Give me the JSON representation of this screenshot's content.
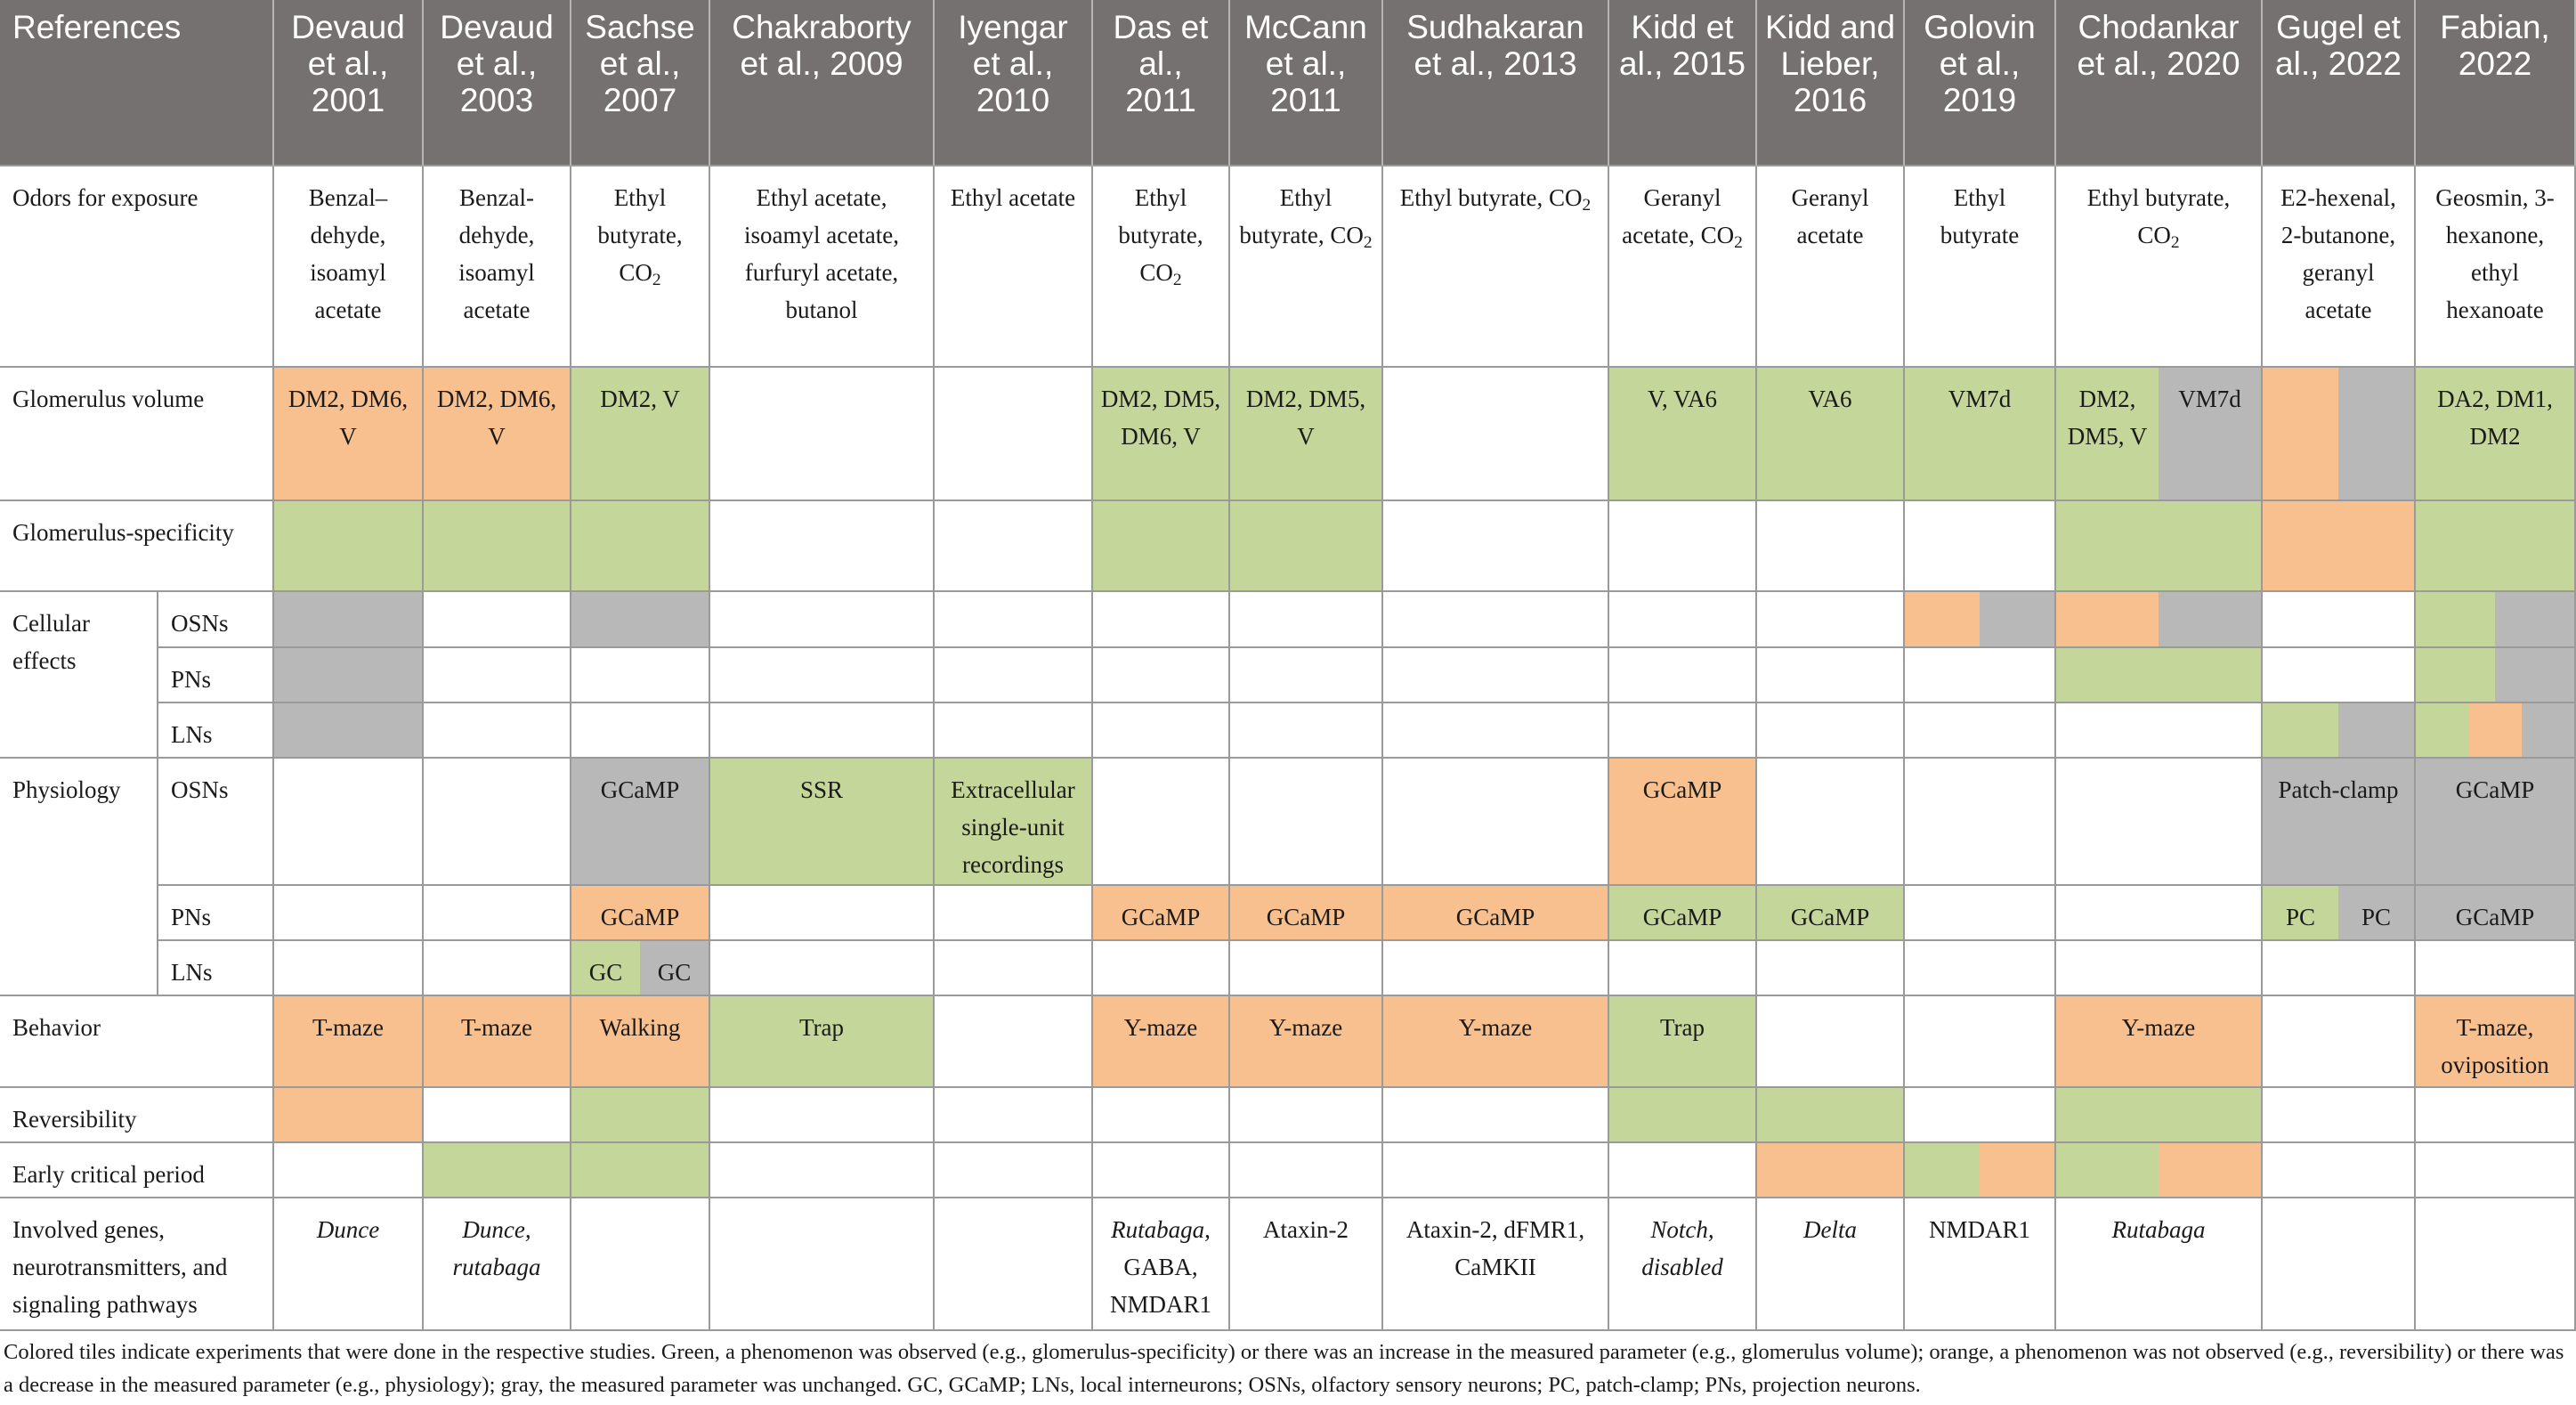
{
  "colors": {
    "header": "#767171",
    "green": "#c5d69b",
    "orange": "#f9c08f",
    "gray": "#b8b8b8",
    "grid_line": "#9a9a9a"
  },
  "headers": [
    "References",
    "Devaud et al., 2001",
    "Devaud et al., 2003",
    "Sachse et al., 2007",
    "Chakraborty et al., 2009",
    "Iyengar et al., 2010",
    "Das et al., 2011",
    "McCann et al., 2011",
    "Sudhakaran et al., 2013",
    "Kidd et al., 2015",
    "Kidd and Lieber, 2016",
    "Golovin et al., 2019",
    "Chodankar et al., 2020",
    "Gugel et al., 2022",
    "Fabian, 2022"
  ],
  "rows": [
    {
      "label": "Odors for exposure",
      "sublabel": "",
      "cells": [
        {
          "tiles": [],
          "text": "Benzal–dehyde, isoamyl acetate"
        },
        {
          "tiles": [],
          "text": "Benzal-dehyde, isoamyl acetate"
        },
        {
          "tiles": [],
          "text": "Ethyl butyrate, CO₂"
        },
        {
          "tiles": [],
          "text": "Ethyl acetate, isoamyl acetate, furfuryl acetate, butanol"
        },
        {
          "tiles": [],
          "text": "Ethyl acetate"
        },
        {
          "tiles": [],
          "text": "Ethyl butyrate, CO₂"
        },
        {
          "tiles": [],
          "text": "Ethyl butyrate, CO₂"
        },
        {
          "tiles": [],
          "text": "Ethyl butyrate, CO₂"
        },
        {
          "tiles": [],
          "text": "Geranyl acetate, CO₂"
        },
        {
          "tiles": [],
          "text": "Geranyl acetate"
        },
        {
          "tiles": [],
          "text": "Ethyl butyrate"
        },
        {
          "tiles": [],
          "text": "Ethyl butyrate, CO₂"
        },
        {
          "tiles": [],
          "text": "E2-hexenal, 2-butanone, geranyl acetate"
        },
        {
          "tiles": [],
          "text": "Geosmin, 3-hexanone, ethyl hexanoate"
        }
      ]
    },
    {
      "label": "Glomerulus volume",
      "sublabel": "",
      "cells": [
        {
          "tiles": [
            "orange"
          ],
          "text": "DM2, DM6, V"
        },
        {
          "tiles": [
            "orange"
          ],
          "text": "DM2, DM6, V"
        },
        {
          "tiles": [
            "green"
          ],
          "text": "DM2, V"
        },
        {
          "tiles": [],
          "text": ""
        },
        {
          "tiles": [],
          "text": ""
        },
        {
          "tiles": [
            "green"
          ],
          "text": "DM2, DM5, DM6, V"
        },
        {
          "tiles": [
            "green"
          ],
          "text": "DM2, DM5, V"
        },
        {
          "tiles": [],
          "text": ""
        },
        {
          "tiles": [
            "green"
          ],
          "text": "V, VA6"
        },
        {
          "tiles": [
            "green"
          ],
          "text": "VA6"
        },
        {
          "tiles": [
            "green"
          ],
          "text": "VM7d"
        },
        {
          "tiles": [
            "green",
            "gray"
          ],
          "texts": [
            "DM2, DM5, V",
            "VM7d"
          ]
        },
        {
          "tiles": [
            "orange",
            "gray"
          ],
          "text": ""
        },
        {
          "tiles": [
            "green"
          ],
          "text": "DA2, DM1, DM2"
        }
      ]
    },
    {
      "label": "Glomerulus-specificity",
      "sublabel": "",
      "cells": [
        {
          "tiles": [
            "green"
          ],
          "text": ""
        },
        {
          "tiles": [
            "green"
          ],
          "text": ""
        },
        {
          "tiles": [
            "green"
          ],
          "text": ""
        },
        {
          "tiles": [],
          "text": ""
        },
        {
          "tiles": [],
          "text": ""
        },
        {
          "tiles": [
            "green"
          ],
          "text": ""
        },
        {
          "tiles": [
            "green"
          ],
          "text": ""
        },
        {
          "tiles": [],
          "text": ""
        },
        {
          "tiles": [],
          "text": ""
        },
        {
          "tiles": [],
          "text": ""
        },
        {
          "tiles": [],
          "text": ""
        },
        {
          "tiles": [
            "green"
          ],
          "text": ""
        },
        {
          "tiles": [
            "orange"
          ],
          "text": ""
        },
        {
          "tiles": [
            "green"
          ],
          "text": ""
        }
      ]
    },
    {
      "label": "Cellular effects",
      "sublabel": "OSNs",
      "cells": [
        {
          "tiles": [
            "gray"
          ],
          "text": ""
        },
        {
          "tiles": [],
          "text": ""
        },
        {
          "tiles": [
            "gray"
          ],
          "text": ""
        },
        {
          "tiles": [],
          "text": ""
        },
        {
          "tiles": [],
          "text": ""
        },
        {
          "tiles": [],
          "text": ""
        },
        {
          "tiles": [],
          "text": ""
        },
        {
          "tiles": [],
          "text": ""
        },
        {
          "tiles": [],
          "text": ""
        },
        {
          "tiles": [],
          "text": ""
        },
        {
          "tiles": [
            "orange",
            "gray"
          ],
          "text": ""
        },
        {
          "tiles": [
            "orange",
            "gray"
          ],
          "text": ""
        },
        {
          "tiles": [],
          "text": ""
        },
        {
          "tiles": [
            "green",
            "gray"
          ],
          "text": ""
        }
      ]
    },
    {
      "label": "",
      "sublabel": "PNs",
      "cells": [
        {
          "tiles": [
            "gray"
          ],
          "text": ""
        },
        {
          "tiles": [],
          "text": ""
        },
        {
          "tiles": [],
          "text": ""
        },
        {
          "tiles": [],
          "text": ""
        },
        {
          "tiles": [],
          "text": ""
        },
        {
          "tiles": [],
          "text": ""
        },
        {
          "tiles": [],
          "text": ""
        },
        {
          "tiles": [],
          "text": ""
        },
        {
          "tiles": [],
          "text": ""
        },
        {
          "tiles": [],
          "text": ""
        },
        {
          "tiles": [],
          "text": ""
        },
        {
          "tiles": [
            "green"
          ],
          "text": ""
        },
        {
          "tiles": [],
          "text": ""
        },
        {
          "tiles": [
            "green",
            "gray"
          ],
          "text": ""
        }
      ]
    },
    {
      "label": "",
      "sublabel": "LNs",
      "cells": [
        {
          "tiles": [
            "gray"
          ],
          "text": ""
        },
        {
          "tiles": [],
          "text": ""
        },
        {
          "tiles": [],
          "text": ""
        },
        {
          "tiles": [],
          "text": ""
        },
        {
          "tiles": [],
          "text": ""
        },
        {
          "tiles": [],
          "text": ""
        },
        {
          "tiles": [],
          "text": ""
        },
        {
          "tiles": [],
          "text": ""
        },
        {
          "tiles": [],
          "text": ""
        },
        {
          "tiles": [],
          "text": ""
        },
        {
          "tiles": [],
          "text": ""
        },
        {
          "tiles": [],
          "text": ""
        },
        {
          "tiles": [
            "green",
            "gray"
          ],
          "text": ""
        },
        {
          "tiles": [
            "green",
            "orange",
            "gray"
          ],
          "text": ""
        }
      ]
    },
    {
      "label": "Physiology",
      "sublabel": "OSNs",
      "cells": [
        {
          "tiles": [],
          "text": ""
        },
        {
          "tiles": [],
          "text": ""
        },
        {
          "tiles": [
            "gray"
          ],
          "text": "GCaMP"
        },
        {
          "tiles": [
            "green"
          ],
          "text": "SSR"
        },
        {
          "tiles": [
            "green"
          ],
          "text": "Extracellular single-unit recordings"
        },
        {
          "tiles": [],
          "text": ""
        },
        {
          "tiles": [],
          "text": ""
        },
        {
          "tiles": [],
          "text": ""
        },
        {
          "tiles": [
            "orange"
          ],
          "text": "GCaMP"
        },
        {
          "tiles": [],
          "text": ""
        },
        {
          "tiles": [],
          "text": ""
        },
        {
          "tiles": [],
          "text": ""
        },
        {
          "tiles": [
            "gray"
          ],
          "text": "Patch-clamp"
        },
        {
          "tiles": [
            "gray"
          ],
          "text": "GCaMP"
        }
      ]
    },
    {
      "label": "",
      "sublabel": "PNs",
      "cells": [
        {
          "tiles": [],
          "text": ""
        },
        {
          "tiles": [],
          "text": ""
        },
        {
          "tiles": [
            "orange"
          ],
          "text": "GCaMP"
        },
        {
          "tiles": [],
          "text": ""
        },
        {
          "tiles": [],
          "text": ""
        },
        {
          "tiles": [
            "orange"
          ],
          "text": "GCaMP"
        },
        {
          "tiles": [
            "orange"
          ],
          "text": "GCaMP"
        },
        {
          "tiles": [
            "orange"
          ],
          "text": "GCaMP"
        },
        {
          "tiles": [
            "green"
          ],
          "text": "GCaMP"
        },
        {
          "tiles": [
            "green"
          ],
          "text": "GCaMP"
        },
        {
          "tiles": [],
          "text": ""
        },
        {
          "tiles": [],
          "text": ""
        },
        {
          "tiles": [
            "green",
            "gray"
          ],
          "texts": [
            "PC",
            "PC"
          ]
        },
        {
          "tiles": [
            "gray"
          ],
          "text": "GCaMP"
        }
      ]
    },
    {
      "label": "",
      "sublabel": "LNs",
      "cells": [
        {
          "tiles": [],
          "text": ""
        },
        {
          "tiles": [],
          "text": ""
        },
        {
          "tiles": [
            "green",
            "gray"
          ],
          "texts": [
            "GC",
            "GC"
          ]
        },
        {
          "tiles": [],
          "text": ""
        },
        {
          "tiles": [],
          "text": ""
        },
        {
          "tiles": [],
          "text": ""
        },
        {
          "tiles": [],
          "text": ""
        },
        {
          "tiles": [],
          "text": ""
        },
        {
          "tiles": [],
          "text": ""
        },
        {
          "tiles": [],
          "text": ""
        },
        {
          "tiles": [],
          "text": ""
        },
        {
          "tiles": [],
          "text": ""
        },
        {
          "tiles": [],
          "text": ""
        },
        {
          "tiles": [],
          "text": ""
        }
      ]
    },
    {
      "label": "Behavior",
      "sublabel": "",
      "cells": [
        {
          "tiles": [
            "orange"
          ],
          "text": "T-maze"
        },
        {
          "tiles": [
            "orange"
          ],
          "text": "T-maze"
        },
        {
          "tiles": [
            "orange"
          ],
          "text": "Walking"
        },
        {
          "tiles": [
            "green"
          ],
          "text": "Trap"
        },
        {
          "tiles": [],
          "text": ""
        },
        {
          "tiles": [
            "orange"
          ],
          "text": "Y-maze"
        },
        {
          "tiles": [
            "orange"
          ],
          "text": "Y-maze"
        },
        {
          "tiles": [
            "orange"
          ],
          "text": "Y-maze"
        },
        {
          "tiles": [
            "green"
          ],
          "text": "Trap"
        },
        {
          "tiles": [],
          "text": ""
        },
        {
          "tiles": [],
          "text": ""
        },
        {
          "tiles": [
            "orange"
          ],
          "text": "Y-maze"
        },
        {
          "tiles": [],
          "text": ""
        },
        {
          "tiles": [
            "orange"
          ],
          "text": "T-maze, oviposition"
        }
      ]
    },
    {
      "label": "Reversibility",
      "sublabel": "",
      "cells": [
        {
          "tiles": [
            "orange"
          ],
          "text": ""
        },
        {
          "tiles": [],
          "text": ""
        },
        {
          "tiles": [
            "green"
          ],
          "text": ""
        },
        {
          "tiles": [],
          "text": ""
        },
        {
          "tiles": [],
          "text": ""
        },
        {
          "tiles": [],
          "text": ""
        },
        {
          "tiles": [],
          "text": ""
        },
        {
          "tiles": [],
          "text": ""
        },
        {
          "tiles": [
            "green"
          ],
          "text": ""
        },
        {
          "tiles": [
            "green"
          ],
          "text": ""
        },
        {
          "tiles": [],
          "text": ""
        },
        {
          "tiles": [
            "green"
          ],
          "text": ""
        },
        {
          "tiles": [],
          "text": ""
        },
        {
          "tiles": [],
          "text": ""
        }
      ]
    },
    {
      "label": "Early critical period",
      "sublabel": "",
      "cells": [
        {
          "tiles": [],
          "text": ""
        },
        {
          "tiles": [
            "green"
          ],
          "text": ""
        },
        {
          "tiles": [
            "green"
          ],
          "text": ""
        },
        {
          "tiles": [],
          "text": ""
        },
        {
          "tiles": [],
          "text": ""
        },
        {
          "tiles": [],
          "text": ""
        },
        {
          "tiles": [],
          "text": ""
        },
        {
          "tiles": [],
          "text": ""
        },
        {
          "tiles": [],
          "text": ""
        },
        {
          "tiles": [
            "orange"
          ],
          "text": ""
        },
        {
          "tiles": [
            "green",
            "orange"
          ],
          "text": ""
        },
        {
          "tiles": [
            "green",
            "orange"
          ],
          "text": ""
        },
        {
          "tiles": [],
          "text": ""
        },
        {
          "tiles": [],
          "text": ""
        }
      ]
    },
    {
      "label": "Involved genes, neurotransmitters, and signaling pathways",
      "sublabel": "",
      "cells": [
        {
          "tiles": [],
          "text": "Dunce",
          "italic": true
        },
        {
          "tiles": [],
          "text": "Dunce, rutabaga",
          "italic": true
        },
        {
          "tiles": [],
          "text": ""
        },
        {
          "tiles": [],
          "text": ""
        },
        {
          "tiles": [],
          "text": ""
        },
        {
          "tiles": [],
          "text": "Rutabaga, GABA, NMDAR1",
          "italic_lines": 1
        },
        {
          "tiles": [],
          "text": "Ataxin-2"
        },
        {
          "tiles": [],
          "text": "Ataxin-2, dFMR1, CaMKII"
        },
        {
          "tiles": [],
          "text": "Notch, disabled",
          "italic": true
        },
        {
          "tiles": [],
          "text": "Delta",
          "italic": true
        },
        {
          "tiles": [],
          "text": "NMDAR1"
        },
        {
          "tiles": [],
          "text": "Rutabaga",
          "italic": true
        },
        {
          "tiles": [],
          "text": ""
        },
        {
          "tiles": [],
          "text": ""
        }
      ]
    }
  ],
  "caption": "Colored tiles indicate experiments that were done in the respective studies. Green, a phenomenon was observed (e.g., glomerulus-specificity) or there was an increase in the measured parameter (e.g., glomerulus volume); orange, a phenomenon was not observed (e.g., reversibility) or there was a decrease in the measured parameter (e.g., physiology); gray, the measured parameter was unchanged. GC, GCaMP; LNs, local interneurons; OSNs, olfactory sensory neurons; PC, patch-clamp; PNs, projection neurons."
}
